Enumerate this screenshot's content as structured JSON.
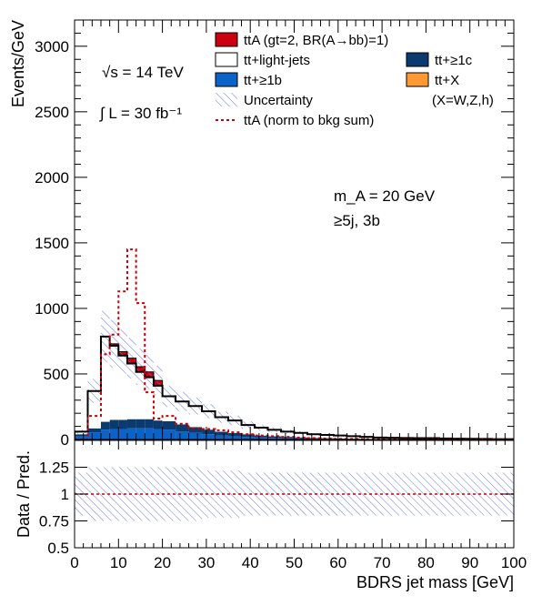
{
  "chart_data": {
    "type": "histogram",
    "x": {
      "label": "BDRS jet mass [GeV]",
      "range": [
        0,
        100
      ],
      "ticks": [
        0,
        10,
        20,
        30,
        40,
        50,
        60,
        70,
        80,
        90,
        100
      ],
      "bin_edges": [
        0,
        3,
        6,
        8,
        10,
        12,
        14,
        16,
        18,
        20,
        23,
        26,
        29,
        32,
        35,
        38,
        41,
        44,
        47,
        50,
        53,
        56,
        59,
        62,
        65,
        68,
        71,
        74,
        77,
        80,
        83,
        86,
        89,
        92,
        95,
        98,
        100
      ]
    },
    "top_panel": {
      "ylabel": "Events/GeV",
      "ylim": [
        0,
        3200
      ],
      "yticks": [
        0,
        500,
        1000,
        1500,
        2000,
        2500,
        3000
      ],
      "stack": [
        {
          "name": "tt+≥1b",
          "color": "#0a63c9",
          "values": [
            25,
            55,
            75,
            80,
            80,
            85,
            85,
            85,
            80,
            75,
            60,
            50,
            40,
            30,
            25,
            20,
            15,
            12,
            10,
            8,
            6,
            5,
            4,
            3,
            2,
            2,
            2,
            1,
            1,
            1,
            1,
            1,
            0,
            0,
            0,
            0
          ]
        },
        {
          "name": "tt+≥1c",
          "color": "#0a3a6e",
          "values": [
            15,
            30,
            60,
            70,
            70,
            70,
            70,
            70,
            65,
            65,
            55,
            45,
            35,
            30,
            25,
            20,
            15,
            12,
            10,
            8,
            6,
            5,
            4,
            3,
            2,
            2,
            2,
            1,
            1,
            1,
            1,
            1,
            0,
            0,
            0,
            0
          ]
        },
        {
          "name": "tt+X",
          "color": "#ff9933",
          "values": [
            0,
            0,
            0,
            0,
            0,
            0,
            0,
            0,
            0,
            0,
            0,
            0,
            0,
            0,
            0,
            0,
            0,
            0,
            0,
            0,
            0,
            0,
            0,
            0,
            0,
            0,
            0,
            0,
            0,
            0,
            0,
            0,
            0,
            0,
            0,
            0
          ]
        },
        {
          "name": "tt+light-jets",
          "color": "#ffffff",
          "values": [
            20,
            285,
            650,
            565,
            490,
            425,
            360,
            320,
            265,
            190,
            175,
            160,
            140,
            110,
            95,
            70,
            60,
            50,
            40,
            34,
            28,
            25,
            22,
            19,
            16,
            11,
            9,
            9,
            8,
            8,
            6,
            4,
            5,
            4,
            3,
            3
          ]
        },
        {
          "name": "ttA (gt=2, BR(A→bb)=1)",
          "color": "#cc0011",
          "values": [
            0,
            0,
            0,
            15,
            30,
            40,
            40,
            40,
            40,
            0,
            0,
            0,
            0,
            0,
            0,
            0,
            0,
            0,
            0,
            0,
            0,
            0,
            0,
            0,
            0,
            0,
            0,
            0,
            0,
            0,
            0,
            0,
            0,
            0,
            0,
            0
          ]
        }
      ],
      "signal_norm_to_bkg": {
        "name": "ttA (norm to bkg sum)",
        "color": "#cc0000",
        "values": [
          0,
          180,
          650,
          800,
          1130,
          1450,
          1040,
          360,
          160,
          180,
          120,
          85,
          80,
          70,
          55,
          40,
          30,
          25,
          20,
          15,
          10,
          8,
          5,
          4,
          3,
          2,
          2,
          1,
          1,
          1,
          0,
          0,
          0,
          0,
          0,
          0
        ]
      },
      "uncertainty": {
        "name": "Uncertainty",
        "relative": 0.25,
        "hatch_color": "#6677dd"
      }
    },
    "ratio_panel": {
      "ylabel": "Data / Pred.",
      "ylim": [
        0.5,
        1.5
      ],
      "yticks": [
        0.5,
        0.75,
        1,
        1.25
      ],
      "reference_line": 1,
      "uncertainty_relative": [
        0.2,
        0.25,
        0.25,
        0.25,
        0.25,
        0.25,
        0.25,
        0.25,
        0.25,
        0.25,
        0.25,
        0.25,
        0.22,
        0.22,
        0.22,
        0.2,
        0.2,
        0.2,
        0.2,
        0.2,
        0.2,
        0.2,
        0.2,
        0.2,
        0.2,
        0.2,
        0.2,
        0.2,
        0.2,
        0.2,
        0.2,
        0.2,
        0.2,
        0.2,
        0.2,
        0.2
      ]
    },
    "legend": {
      "entries": [
        {
          "label": "ttA (gt=2, BR(A→bb)=1)",
          "kind": "fill",
          "color": "#cc0011"
        },
        {
          "label": "tt+light-jets",
          "kind": "fill",
          "color": "#ffffff"
        },
        {
          "label": "tt+≥1c",
          "kind": "fill",
          "color": "#0a3a6e"
        },
        {
          "label": "tt+≥1b",
          "kind": "fill",
          "color": "#0a63c9"
        },
        {
          "label": "tt+X",
          "kind": "fill",
          "color": "#ff9933"
        },
        {
          "label": "Uncertainty",
          "kind": "hatch",
          "color": "#6677dd"
        },
        {
          "label": "(X=W,Z,h)",
          "kind": "text",
          "color": ""
        },
        {
          "label": "ttA (norm to bkg sum)",
          "kind": "dashed",
          "color": "#cc0000"
        }
      ]
    },
    "annotations": {
      "energy": "√s = 14 TeV",
      "lumi": "∫ L = 30 fb⁻¹",
      "mass": "m_A = 20 GeV",
      "selection": "≥5j, 3b"
    }
  }
}
